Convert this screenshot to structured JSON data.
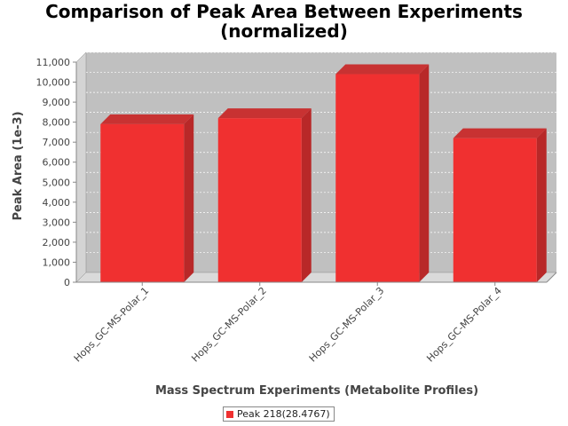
{
  "chart_data": {
    "type": "bar",
    "title_lines": [
      "Comparison of Peak Area Between Experiments",
      "(normalized)"
    ],
    "xlabel": "Mass Spectrum Experiments (Metabolite Profiles)",
    "ylabel": "Peak Area (1e-3)",
    "categories": [
      "Hops_GC-MS-Polar_1",
      "Hops_GC-MS-Polar_2",
      "Hops_GC-MS-Polar_3",
      "Hops_GC-MS-Polar_4"
    ],
    "series": [
      {
        "name": "Peak 218(28.4767)",
        "values": [
          7900,
          8200,
          10400,
          7200
        ],
        "color": "#f03030"
      }
    ],
    "ylim": [
      0,
      11000
    ],
    "yticks": [
      0,
      1000,
      2000,
      3000,
      4000,
      5000,
      6000,
      7000,
      8000,
      9000,
      10000,
      11000
    ],
    "ytick_labels": [
      "0",
      "1,000",
      "2,000",
      "3,000",
      "4,000",
      "5,000",
      "6,000",
      "7,000",
      "8,000",
      "9,000",
      "10,000",
      "11,000"
    ],
    "grid": true,
    "legend_position": "bottom",
    "plot_background": "#c0c0c0"
  }
}
